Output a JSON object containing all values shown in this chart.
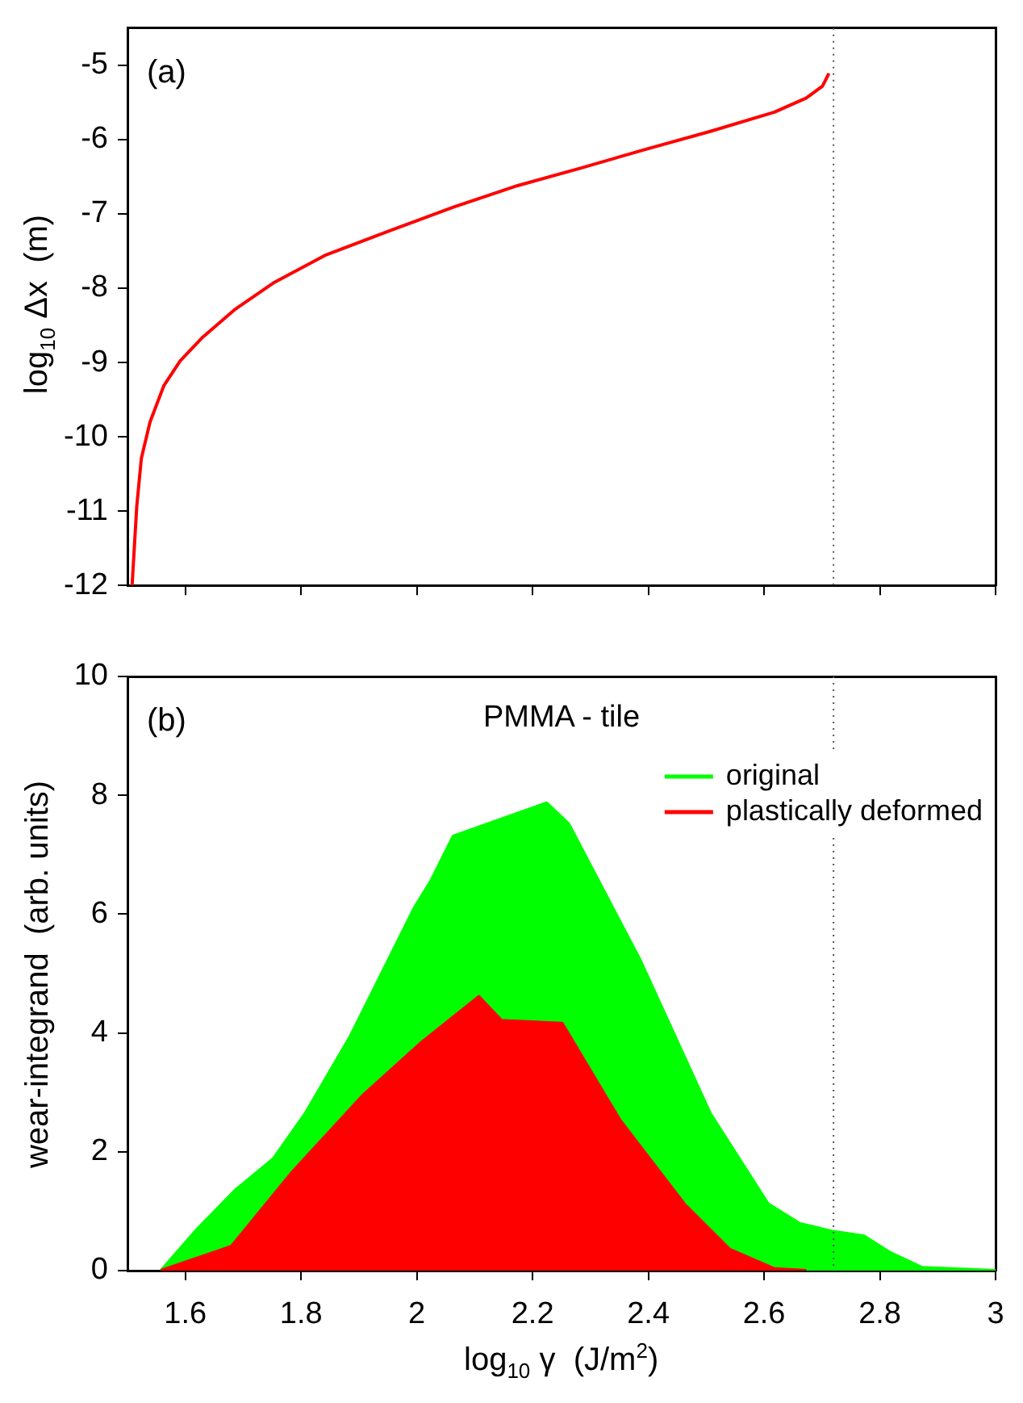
{
  "chart_data": [
    {
      "type": "line",
      "ylabel": "log$_{10}$ Δx  (m)",
      "annotations": [
        "(a)"
      ],
      "color": "#ff0000",
      "x": [
        1.508,
        1.516,
        1.524,
        1.539,
        1.563,
        1.591,
        1.63,
        1.685,
        1.752,
        1.841,
        1.952,
        2.063,
        2.174,
        2.285,
        2.396,
        2.507,
        2.618,
        2.673,
        2.701,
        2.712
      ],
      "values": [
        -12,
        -10.94,
        -10.29,
        -9.8,
        -9.31,
        -8.98,
        -8.66,
        -8.29,
        -7.93,
        -7.56,
        -7.23,
        -6.91,
        -6.62,
        -6.38,
        -6.13,
        -5.89,
        -5.63,
        -5.44,
        -5.28,
        -5.11
      ],
      "xlim": [
        1.5,
        3
      ],
      "xticks": [
        1.6,
        1.8,
        2,
        2.2,
        2.4,
        2.6,
        2.8,
        3
      ],
      "ylim": [
        -12,
        -4.5
      ],
      "yticks": [
        -12,
        -11,
        -10,
        -9,
        -8,
        -7,
        -6,
        -5
      ],
      "tick_labels": "y",
      "ref_lines": [
        {
          "axis": "x",
          "value": 2.72,
          "color": "#555555",
          "line_style": "dotted"
        }
      ]
    },
    {
      "type": "area",
      "title": "PMMA - tile",
      "xlabel": "log$_{10}$ γ  (J/m$^{2}$)",
      "ylabel": "wear-integrand  (arb. units)",
      "annotations": [
        "(b)"
      ],
      "legend": "top right",
      "series": [
        {
          "name": "original",
          "color": "#00ff00",
          "x": [
            1.558,
            1.619,
            1.685,
            1.752,
            1.807,
            1.885,
            1.996,
            2.024,
            2.063,
            2.224,
            2.262,
            2.385,
            2.507,
            2.607,
            2.662,
            2.718,
            2.773,
            2.818,
            2.873,
            3.0
          ],
          "values": [
            0,
            0.68,
            1.34,
            1.88,
            2.64,
            3.94,
            6.11,
            6.55,
            7.31,
            7.87,
            7.52,
            5.24,
            2.64,
            1.12,
            0.79,
            0.66,
            0.58,
            0.3,
            0.05,
            0
          ]
        },
        {
          "name": "plastically deformed",
          "color": "#ff0000",
          "x": [
            1.558,
            1.68,
            1.785,
            1.908,
            2.007,
            2.107,
            2.146,
            2.251,
            2.351,
            2.462,
            2.54,
            2.618,
            2.673
          ],
          "values": [
            0,
            0.41,
            1.66,
            2.96,
            3.83,
            4.61,
            4.21,
            4.16,
            2.53,
            1.12,
            0.36,
            0.03,
            0
          ]
        }
      ],
      "xlim": [
        1.5,
        3
      ],
      "xticks": [
        1.6,
        1.8,
        2,
        2.2,
        2.4,
        2.6,
        2.8,
        3
      ],
      "ylim": [
        0,
        10
      ],
      "yticks": [
        0,
        2,
        4,
        6,
        8,
        10
      ],
      "ref_lines": [
        {
          "axis": "x",
          "value": 2.72,
          "color": "#555555",
          "line_style": "dotted"
        }
      ]
    }
  ]
}
